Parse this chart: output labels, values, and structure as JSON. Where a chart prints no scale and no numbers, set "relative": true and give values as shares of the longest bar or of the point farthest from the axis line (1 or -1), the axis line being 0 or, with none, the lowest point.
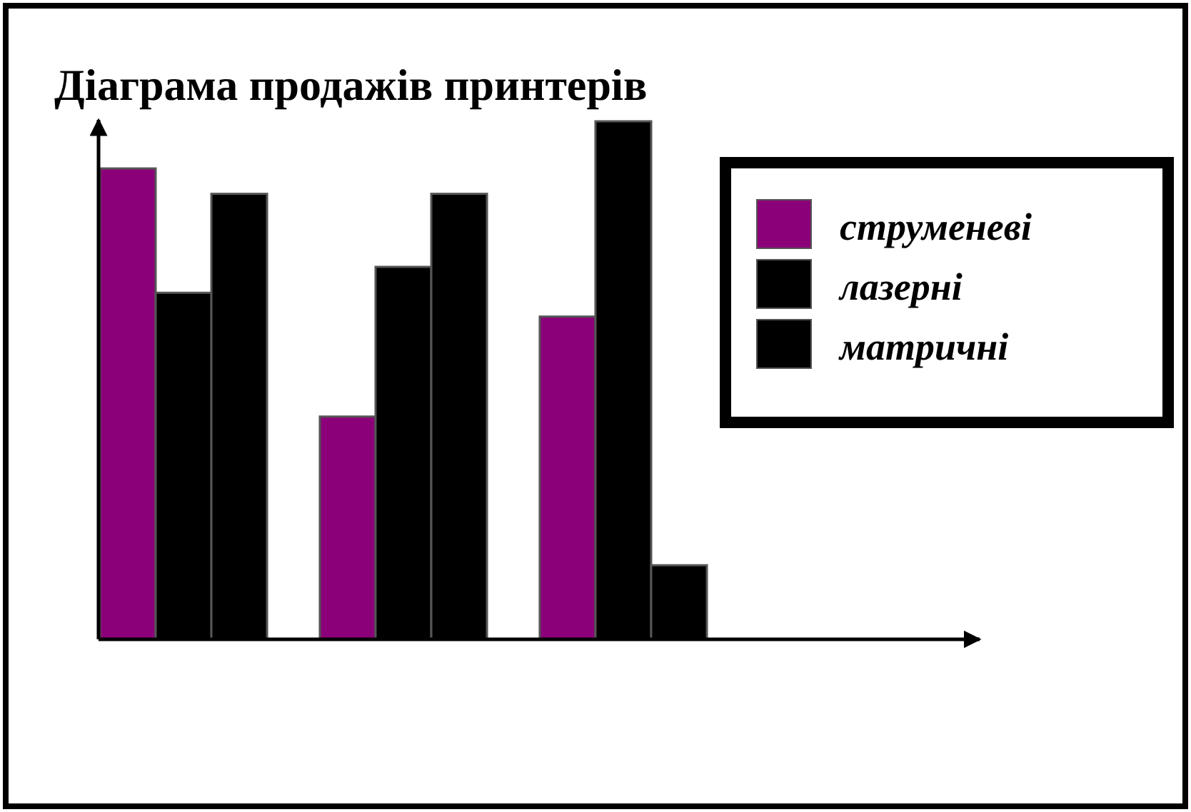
{
  "chart_data": {
    "type": "bar",
    "title": "Діаграма продажів принтерів",
    "categories": [
      null,
      null,
      null
    ],
    "relative": true,
    "legend": "top right",
    "series": [
      {
        "name": "струменеві",
        "color": "#8b0078",
        "values": [
          0.909,
          0.43,
          0.623
        ]
      },
      {
        "name": "лазерні",
        "color": "#000000",
        "values": [
          0.669,
          0.719,
          1.0
        ]
      },
      {
        "name": "матричні",
        "color": "#000000",
        "values": [
          0.86,
          0.86,
          0.143
        ]
      }
    ]
  }
}
